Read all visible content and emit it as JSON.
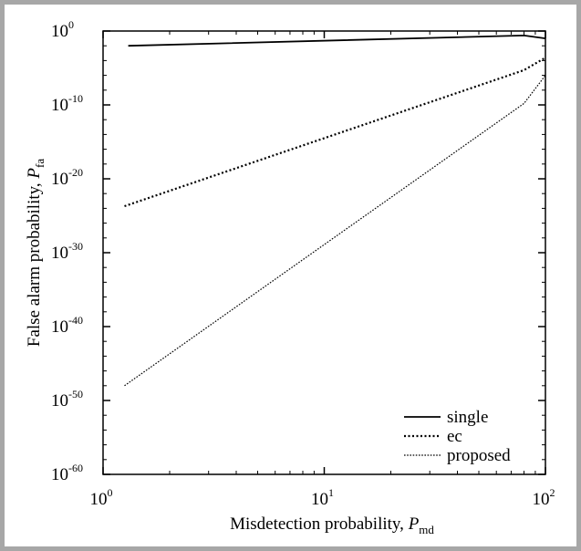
{
  "chart_data": {
    "type": "line",
    "xscale": "log",
    "yscale": "log",
    "xlim": [
      1,
      100
    ],
    "ylim": [
      1e-60,
      1
    ],
    "x_ticks": [
      {
        "value": 1,
        "base": "10",
        "exp": "0"
      },
      {
        "value": 10,
        "base": "10",
        "exp": "1"
      },
      {
        "value": 100,
        "base": "10",
        "exp": "2"
      }
    ],
    "y_ticks": [
      {
        "value": 1,
        "base": "10",
        "exp": "0"
      },
      {
        "value": 1e-10,
        "base": "10",
        "exp": "-10"
      },
      {
        "value": 1e-20,
        "base": "10",
        "exp": "-20"
      },
      {
        "value": 1e-30,
        "base": "10",
        "exp": "-30"
      },
      {
        "value": 1e-40,
        "base": "10",
        "exp": "-40"
      },
      {
        "value": 1e-50,
        "base": "10",
        "exp": "-50"
      },
      {
        "value": 1e-60,
        "base": "10",
        "exp": "-60"
      }
    ],
    "xlabel": {
      "text": "Misdetection probability, ",
      "symbol": "P",
      "subscript": "md"
    },
    "ylabel": {
      "text": "False alarm probability, ",
      "symbol": "P",
      "subscript": "fa"
    },
    "grid": false,
    "legend_position": "bottom-right",
    "series": [
      {
        "name": "single",
        "style": "solid",
        "color": "#000000",
        "points": [
          {
            "x": 1.3,
            "log10_y": -2.0
          },
          {
            "x": 80,
            "log10_y": -0.6
          },
          {
            "x": 100,
            "log10_y": -1.0
          }
        ]
      },
      {
        "name": "ec",
        "style": "dotted",
        "color": "#000000",
        "points": [
          {
            "x": 1.25,
            "log10_y": -23.7
          },
          {
            "x": 80,
            "log10_y": -5.3
          },
          {
            "x": 100,
            "log10_y": -3.6
          }
        ]
      },
      {
        "name": "proposed",
        "style": "dashed",
        "color": "#000000",
        "points": [
          {
            "x": 1.25,
            "log10_y": -48.0
          },
          {
            "x": 80,
            "log10_y": -9.8
          },
          {
            "x": 100,
            "log10_y": -6.0
          }
        ]
      }
    ]
  }
}
